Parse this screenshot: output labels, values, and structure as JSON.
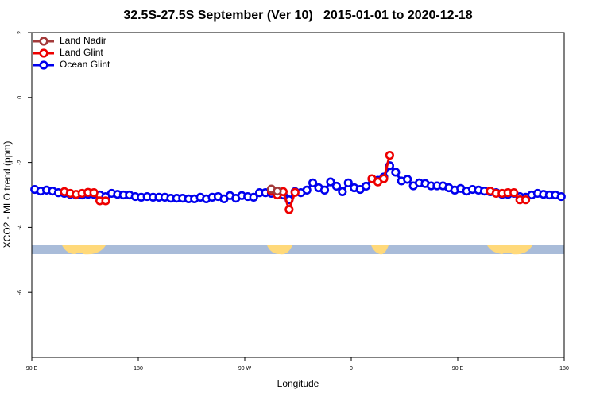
{
  "chart_data": {
    "type": "line",
    "title": "32.5S-27.5S September (Ver 10)   2015-01-01 to 2020-12-18",
    "xlabel": "Longitude",
    "ylabel": "XCO2 - MLO trend (ppm)",
    "xlim": [
      90,
      540
    ],
    "ylim": [
      -8,
      2
    ],
    "xticks": [
      {
        "value": 90,
        "label": "90 E"
      },
      180,
      {
        "value": 270,
        "label": "90 W"
      },
      {
        "value": 360,
        "label": "0"
      },
      {
        "value": 450,
        "label": "90 E"
      },
      {
        "value": 540,
        "label": "180"
      }
    ],
    "yticks": [
      2,
      0,
      -2,
      -4,
      -6
    ],
    "legend": "top-left",
    "x": [
      92.5,
      97.5,
      102.5,
      107.5,
      112.5,
      117.5,
      122.5,
      127.5,
      132.5,
      137.5,
      142.5,
      147.5,
      152.5,
      157.5,
      162.5,
      167.5,
      172.5,
      177.5,
      182.5,
      187.5,
      192.5,
      197.5,
      202.5,
      207.5,
      212.5,
      217.5,
      222.5,
      227.5,
      232.5,
      237.5,
      242.5,
      247.5,
      252.5,
      257.5,
      262.5,
      267.5,
      272.5,
      277.5,
      282.5,
      287.5,
      292.5,
      297.5,
      302.5,
      307.5,
      312.5,
      317.5,
      322.5,
      327.5,
      332.5,
      337.5,
      342.5,
      347.5,
      352.5,
      357.5,
      362.5,
      367.5,
      372.5,
      377.5,
      382.5,
      387.5,
      392.5,
      397.5,
      402.5,
      407.5,
      412.5,
      417.5,
      422.5,
      427.5,
      432.5,
      437.5,
      442.5,
      447.5,
      452.5,
      457.5,
      462.5,
      467.5,
      472.5,
      477.5,
      482.5,
      487.5,
      492.5,
      497.5,
      502.5,
      507.5,
      512.5,
      517.5,
      522.5,
      527.5,
      532.5,
      537.5
    ],
    "series": [
      {
        "name": "Ocean Glint",
        "color": "#0000ee",
        "values": [
          -2.83,
          -2.88,
          -2.85,
          -2.88,
          -2.93,
          -2.95,
          -2.98,
          -3.0,
          -3.0,
          -2.98,
          -2.98,
          -3.0,
          -3.05,
          -2.95,
          -2.98,
          -3.0,
          -3.0,
          -3.05,
          -3.07,
          -3.05,
          -3.07,
          -3.07,
          -3.07,
          -3.1,
          -3.1,
          -3.1,
          -3.12,
          -3.12,
          -3.07,
          -3.12,
          -3.07,
          -3.05,
          -3.12,
          -3.02,
          -3.1,
          -3.02,
          -3.05,
          -3.07,
          -2.93,
          -2.93,
          -2.95,
          -2.95,
          -3.0,
          -3.15,
          -2.9,
          -2.93,
          -2.85,
          -2.63,
          -2.78,
          -2.85,
          -2.6,
          -2.73,
          -2.9,
          -2.63,
          -2.78,
          -2.83,
          -2.73,
          -2.51,
          -2.55,
          -2.45,
          -2.1,
          -2.3,
          -2.57,
          -2.52,
          -2.72,
          -2.63,
          -2.65,
          -2.72,
          -2.72,
          -2.72,
          -2.78,
          -2.85,
          -2.8,
          -2.88,
          -2.83,
          -2.85,
          -2.88,
          -2.9,
          -2.93,
          -2.98,
          -2.98,
          -2.95,
          -3.05,
          -3.07,
          -3.0,
          -2.95,
          -2.98,
          -3.0,
          -3.0,
          -3.05
        ]
      },
      {
        "name": "Land Glint",
        "color": "#ee0000",
        "values": [
          null,
          null,
          null,
          null,
          null,
          -2.9,
          -2.95,
          -2.98,
          -2.95,
          -2.92,
          -2.93,
          -3.18,
          -3.18,
          null,
          null,
          null,
          null,
          null,
          null,
          null,
          null,
          null,
          null,
          null,
          null,
          null,
          null,
          null,
          null,
          null,
          null,
          null,
          null,
          null,
          null,
          null,
          null,
          null,
          null,
          null,
          -2.88,
          -3.0,
          -2.9,
          -3.45,
          -2.92,
          null,
          null,
          null,
          null,
          null,
          null,
          null,
          null,
          null,
          null,
          null,
          null,
          -2.5,
          -2.6,
          -2.5,
          -1.78,
          null,
          null,
          null,
          null,
          null,
          null,
          null,
          null,
          null,
          null,
          null,
          null,
          null,
          null,
          null,
          null,
          -2.88,
          -2.95,
          -2.95,
          -2.93,
          -2.93,
          -3.15,
          -3.15,
          null,
          null,
          null,
          null,
          null,
          null
        ]
      },
      {
        "name": "Land Nadir",
        "color": "#a33a3a",
        "values": [
          null,
          null,
          null,
          null,
          null,
          null,
          null,
          null,
          null,
          null,
          null,
          null,
          null,
          null,
          null,
          null,
          null,
          null,
          null,
          null,
          null,
          null,
          null,
          null,
          null,
          null,
          null,
          null,
          null,
          null,
          null,
          null,
          null,
          null,
          null,
          null,
          null,
          null,
          null,
          null,
          -2.82,
          -2.88,
          null,
          null,
          null,
          null,
          null,
          null,
          null,
          null,
          null,
          null,
          null,
          null,
          null,
          null,
          null,
          null,
          null,
          null,
          null,
          null,
          null,
          null,
          null,
          null,
          null,
          null,
          null,
          null,
          null,
          null,
          null,
          null,
          null,
          null,
          null,
          null,
          null,
          null,
          null,
          null,
          null,
          null,
          null,
          null,
          null,
          null,
          null,
          null
        ]
      }
    ]
  }
}
